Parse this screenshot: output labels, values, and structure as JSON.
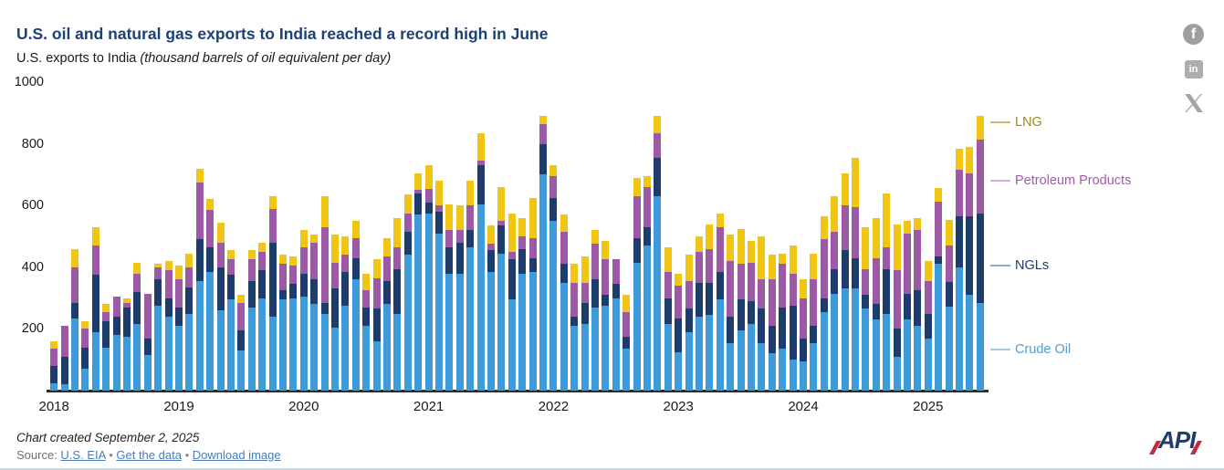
{
  "header": {
    "title": "U.S. oil and natural gas exports to India reached a record high in June",
    "subtitle_plain": "U.S. exports to India ",
    "subtitle_italic": "(thousand barrels of oil equivalent per day)"
  },
  "social": {
    "facebook": "f",
    "linkedin": "in",
    "x": "X"
  },
  "chart_data": {
    "type": "bar",
    "stacked": true,
    "title": "U.S. exports to India",
    "ylabel": "thousand barrels of oil equivalent per day",
    "ylim": [
      0,
      1000
    ],
    "y_ticks": [
      200,
      400,
      600,
      800,
      1000
    ],
    "grid": false,
    "x_monthly_start": "2018-01",
    "x_monthly_end": "2025-06",
    "year_labels": [
      "2018",
      "2019",
      "2020",
      "2021",
      "2022",
      "2023",
      "2024",
      "2025"
    ],
    "series": [
      {
        "name": "Crude Oil",
        "color": "#3d9bdc",
        "values": [
          25,
          20,
          235,
          70,
          190,
          140,
          180,
          175,
          215,
          115,
          275,
          240,
          210,
          250,
          355,
          385,
          260,
          295,
          130,
          270,
          300,
          240,
          295,
          300,
          305,
          280,
          250,
          205,
          275,
          360,
          210,
          160,
          280,
          250,
          440,
          570,
          575,
          510,
          380,
          380,
          465,
          605,
          385,
          445,
          295,
          380,
          385,
          700,
          550,
          350,
          210,
          215,
          270,
          275,
          300,
          135,
          415,
          470,
          630,
          215,
          125,
          190,
          240,
          245,
          295,
          155,
          195,
          215,
          155,
          120,
          135,
          100,
          95,
          155,
          255,
          315,
          330,
          330,
          265,
          230,
          250,
          110,
          230,
          210,
          170,
          410,
          272,
          400,
          310,
          285
        ]
      },
      {
        "name": "NGLs",
        "color": "#1c3d6b",
        "values": [
          55,
          90,
          50,
          70,
          185,
          85,
          60,
          95,
          105,
          55,
          85,
          60,
          60,
          85,
          135,
          80,
          140,
          80,
          65,
          85,
          90,
          240,
          30,
          45,
          75,
          80,
          35,
          125,
          110,
          70,
          60,
          105,
          75,
          145,
          75,
          70,
          35,
          70,
          85,
          100,
          55,
          125,
          70,
          90,
          130,
          80,
          45,
          100,
          75,
          60,
          30,
          70,
          90,
          35,
          45,
          40,
          80,
          60,
          125,
          85,
          110,
          75,
          110,
          105,
          90,
          85,
          100,
          75,
          110,
          90,
          135,
          175,
          75,
          55,
          45,
          80,
          125,
          100,
          45,
          50,
          145,
          90,
          85,
          115,
          80,
          25,
          80,
          165,
          255,
          290
        ]
      },
      {
        "name": "Petroleum Products",
        "color": "#9c59a5",
        "values": [
          55,
          100,
          115,
          60,
          95,
          30,
          65,
          15,
          60,
          145,
          40,
          90,
          90,
          65,
          185,
          120,
          80,
          50,
          90,
          70,
          60,
          110,
          85,
          60,
          85,
          120,
          245,
          85,
          55,
          65,
          55,
          100,
          80,
          70,
          60,
          10,
          45,
          20,
          55,
          40,
          80,
          15,
          20,
          15,
          25,
          40,
          65,
          65,
          70,
          105,
          110,
          65,
          115,
          115,
          80,
          80,
          135,
          130,
          80,
          85,
          105,
          90,
          100,
          110,
          145,
          180,
          115,
          125,
          95,
          150,
          140,
          105,
          130,
          150,
          190,
          120,
          145,
          165,
          85,
          150,
          70,
          190,
          195,
          195,
          105,
          178,
          118,
          150,
          140,
          240
        ]
      },
      {
        "name": "LNG",
        "color": "#f0c514",
        "values": [
          25,
          0,
          60,
          25,
          60,
          25,
          0,
          15,
          35,
          0,
          10,
          30,
          45,
          45,
          45,
          35,
          65,
          30,
          25,
          30,
          30,
          40,
          30,
          30,
          55,
          25,
          100,
          90,
          60,
          55,
          55,
          60,
          60,
          95,
          60,
          55,
          75,
          80,
          85,
          80,
          80,
          90,
          60,
          110,
          125,
          60,
          130,
          25,
          35,
          55,
          60,
          85,
          45,
          60,
          0,
          55,
          60,
          35,
          55,
          80,
          40,
          85,
          50,
          80,
          45,
          85,
          115,
          70,
          140,
          80,
          35,
          90,
          60,
          85,
          75,
          115,
          105,
          160,
          135,
          130,
          175,
          150,
          40,
          40,
          65,
          45,
          83,
          70,
          85,
          75
        ]
      }
    ],
    "legend_position": "right",
    "legend": [
      {
        "label": "LNG",
        "text_color": "#9c8a13",
        "line_color": "#c9b97a",
        "y": 36
      },
      {
        "label": "Petroleum Products",
        "text_color": "#a05ca8",
        "line_color": "#d7a9dc",
        "y": 100
      },
      {
        "label": "NGLs",
        "text_color": "#1c3d6b",
        "line_color": "#93a9c9",
        "y": 193
      },
      {
        "label": "Crude Oil",
        "text_color": "#4d9fdb",
        "line_color": "#a3c9e8",
        "y": 285
      }
    ]
  },
  "footer": {
    "created": "Chart created September 2, 2025",
    "source_label": "Source: ",
    "link_eia": "U.S. EIA",
    "link_data": "Get the data",
    "link_download": "Download image",
    "separator": "•"
  },
  "logo": {
    "text": "API"
  }
}
